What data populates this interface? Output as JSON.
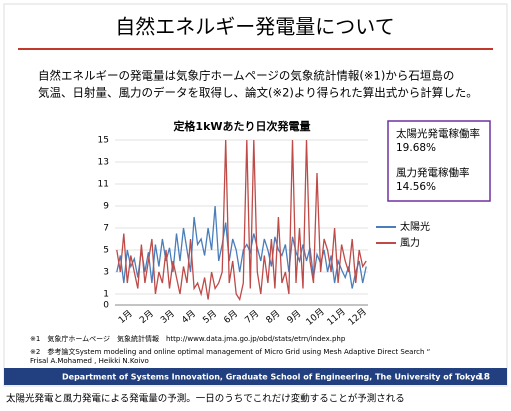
{
  "slide": {
    "title": "自然エネルギー発電量について",
    "body": [
      "自然エネルギーの発電量は気象庁ホームページの気象統計情報(※1)から石垣島の",
      "気温、日射量、風力のデータを取得し、論文(※2)より得られた算出式から計算した。"
    ]
  },
  "chart_data": {
    "type": "line",
    "title": "定格1kWあたり日次発電量",
    "categories": [
      "1月",
      null,
      null,
      null,
      null,
      null,
      "2月",
      null,
      null,
      null,
      null,
      null,
      "3月",
      null,
      null,
      null,
      null,
      null,
      "4月",
      null,
      null,
      null,
      null,
      null,
      "5月",
      null,
      null,
      null,
      null,
      null,
      "6月",
      null,
      null,
      null,
      null,
      null,
      "7月",
      null,
      null,
      null,
      null,
      null,
      "8月",
      null,
      null,
      null,
      null,
      null,
      "9月",
      null,
      null,
      null,
      null,
      null,
      "10月",
      null,
      null,
      null,
      null,
      null,
      "11月",
      null,
      null,
      null,
      null,
      null,
      "12月",
      null,
      null,
      null,
      null,
      null
    ],
    "series": [
      {
        "name": "太陽光",
        "color": "#4a7ebb",
        "values": [
          3,
          4.5,
          2,
          5,
          3.5,
          4.2,
          2.5,
          5,
          3,
          4.8,
          2,
          5.5,
          3.5,
          6,
          4,
          5.2,
          3,
          6.5,
          4,
          7,
          5,
          3,
          8,
          5.5,
          6,
          4.5,
          7,
          5,
          9,
          4,
          5.5,
          7.5,
          4,
          6,
          5,
          3,
          5,
          5.5,
          4.8,
          6.5,
          5.2,
          4,
          6,
          5,
          3.5,
          6.2,
          5,
          4.5,
          5.5,
          3,
          6.2,
          4.8,
          4,
          5.5,
          4,
          5.2,
          2.5,
          4.6,
          3.8,
          5,
          3,
          4.5,
          2,
          4,
          3.2,
          2.5,
          3.5,
          1.5,
          3,
          4,
          2,
          3.5
        ]
      },
      {
        "name": "風力",
        "color": "#be4b48",
        "values": [
          5,
          3,
          6.5,
          2,
          4.5,
          3,
          1.5,
          5.5,
          2,
          4,
          6,
          1,
          3,
          2,
          5,
          1.5,
          4,
          2.5,
          1,
          3.5,
          2,
          6,
          1.5,
          2,
          1,
          2.5,
          0.5,
          3,
          1.5,
          2,
          3,
          15,
          2,
          4,
          1,
          0.5,
          2,
          15,
          1.5,
          15,
          3,
          1,
          4.5,
          2,
          6,
          1.5,
          8,
          2,
          3,
          1,
          15,
          2,
          7,
          1.5,
          15,
          4,
          2,
          12,
          3,
          6,
          5,
          3,
          7,
          2,
          5.5,
          4,
          3,
          6,
          2,
          5,
          3.5,
          4
        ]
      }
    ],
    "ylim": [
      0,
      15
    ],
    "yticks": [
      0,
      1,
      3,
      5,
      7,
      9,
      11,
      13,
      15
    ],
    "grid": true
  },
  "rate_box": [
    {
      "label": "太陽光発電稼働率",
      "value": "19.68%"
    },
    {
      "label": "風力発電稼働率",
      "value": "14.56%"
    }
  ],
  "footnotes": [
    "※1　気象庁ホームページ　気象統計情報　http://www.data.jma.go.jp/obd/stats/etrn/index.php",
    "※2　参考論文System modeling and online optimal management of Micro Grid using Mesh Adaptive Direct Search “",
    "Frisal A.Mohamed , Heikki N.Koivo"
  ],
  "footer": {
    "text": "Department of Systems Innovation, Graduate School of Engineering, The University of Tokyo",
    "page_number": "18"
  },
  "caption": "太陽光発電と風力発電による発電量の予測。一日のうちでこれだけ変動することが予測される"
}
